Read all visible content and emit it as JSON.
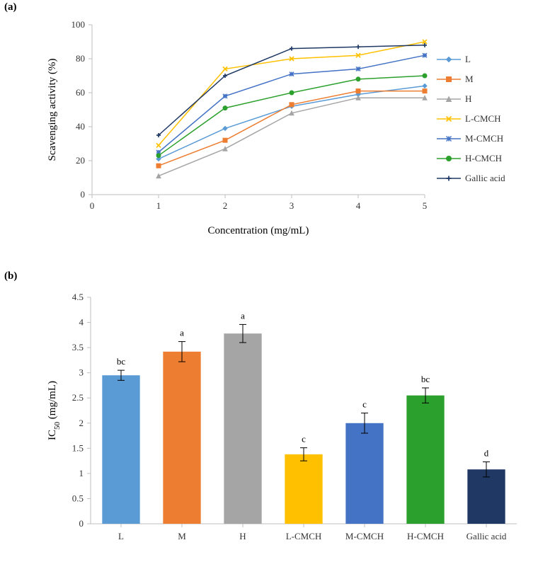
{
  "panelA": {
    "label": "(a)",
    "chart_type": "line",
    "xlabel": "Concentration (mg/mL)",
    "ylabel": "Scavenging activity (%)",
    "label_fontsize": 15,
    "tick_fontsize": 13,
    "xlim": [
      0,
      5
    ],
    "ylim": [
      0,
      100
    ],
    "xticks": [
      0,
      1,
      2,
      3,
      4,
      5
    ],
    "yticks": [
      0,
      20,
      40,
      60,
      80,
      100
    ],
    "x_values": [
      1,
      2,
      3,
      4,
      5
    ],
    "axis_color": "#bfbfbf",
    "grid_on": false,
    "background_color": "#ffffff",
    "line_width": 1.5,
    "marker_size": 6,
    "series": [
      {
        "name": "L",
        "color": "#5b9bd5",
        "marker": "diamond",
        "y": [
          21,
          39,
          52,
          59,
          64
        ]
      },
      {
        "name": "M",
        "color": "#ed7d31",
        "marker": "square",
        "y": [
          17,
          32,
          53,
          61,
          61
        ]
      },
      {
        "name": "H",
        "color": "#a5a5a5",
        "marker": "triangle",
        "y": [
          11,
          27,
          48,
          57,
          57
        ]
      },
      {
        "name": "L-CMCH",
        "color": "#ffc000",
        "marker": "x",
        "y": [
          29,
          74,
          80,
          82,
          90
        ]
      },
      {
        "name": "M-CMCH",
        "color": "#4472c4",
        "marker": "asterisk",
        "y": [
          25,
          58,
          71,
          74,
          82
        ]
      },
      {
        "name": "H-CMCH",
        "color": "#2ca02c",
        "marker": "circle",
        "y": [
          23,
          51,
          60,
          68,
          70
        ]
      },
      {
        "name": "Gallic acid",
        "color": "#1f3864",
        "marker": "plus",
        "y": [
          35,
          70,
          86,
          87,
          88
        ]
      }
    ]
  },
  "panelB": {
    "label": "(b)",
    "chart_type": "bar",
    "ylabel": "IC₅₀ (mg/mL)",
    "label_fontsize": 15,
    "tick_fontsize": 13,
    "ylim": [
      0,
      4.5
    ],
    "yticks": [
      0,
      0.5,
      1,
      1.5,
      2,
      2.5,
      3,
      3.5,
      4,
      4.5
    ],
    "axis_color": "#bfbfbf",
    "grid_on": false,
    "background_color": "#ffffff",
    "bar_width_ratio": 0.62,
    "error_cap_width": 10,
    "error_color": "#000000",
    "sig_label_fontsize": 13,
    "bars": [
      {
        "name": "L",
        "color": "#5b9bd5",
        "value": 2.95,
        "err": 0.1,
        "sig": "bc"
      },
      {
        "name": "M",
        "color": "#ed7d31",
        "value": 3.42,
        "err": 0.2,
        "sig": "a"
      },
      {
        "name": "H",
        "color": "#a5a5a5",
        "value": 3.78,
        "err": 0.18,
        "sig": "a"
      },
      {
        "name": "L-CMCH",
        "color": "#ffc000",
        "value": 1.38,
        "err": 0.13,
        "sig": "c"
      },
      {
        "name": "M-CMCH",
        "color": "#4472c4",
        "value": 2.0,
        "err": 0.2,
        "sig": "c"
      },
      {
        "name": "H-CMCH",
        "color": "#2ca02c",
        "value": 2.55,
        "err": 0.15,
        "sig": "bc"
      },
      {
        "name": "Gallic acid",
        "color": "#1f3864",
        "value": 1.08,
        "err": 0.15,
        "sig": "d"
      }
    ]
  }
}
